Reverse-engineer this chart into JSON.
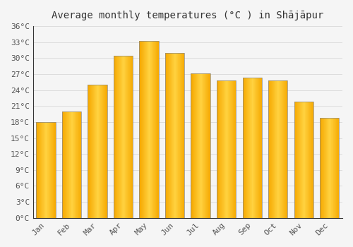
{
  "title": "Average monthly temperatures (°C ) in Shājāpur",
  "months": [
    "Jan",
    "Feb",
    "Mar",
    "Apr",
    "May",
    "Jun",
    "Jul",
    "Aug",
    "Sep",
    "Oct",
    "Nov",
    "Dec"
  ],
  "values": [
    18,
    20,
    25,
    30.5,
    33.2,
    31,
    27.2,
    25.8,
    26.3,
    25.8,
    21.8,
    18.8
  ],
  "bar_color_center": "#FFD240",
  "bar_color_edge": "#F5A800",
  "bar_outline_color": "#888888",
  "background_color": "#f5f5f5",
  "grid_color": "#dddddd",
  "text_color": "#555555",
  "ylim": [
    0,
    36
  ],
  "ytick_step": 3,
  "title_fontsize": 10,
  "tick_fontsize": 8,
  "font_family": "monospace"
}
